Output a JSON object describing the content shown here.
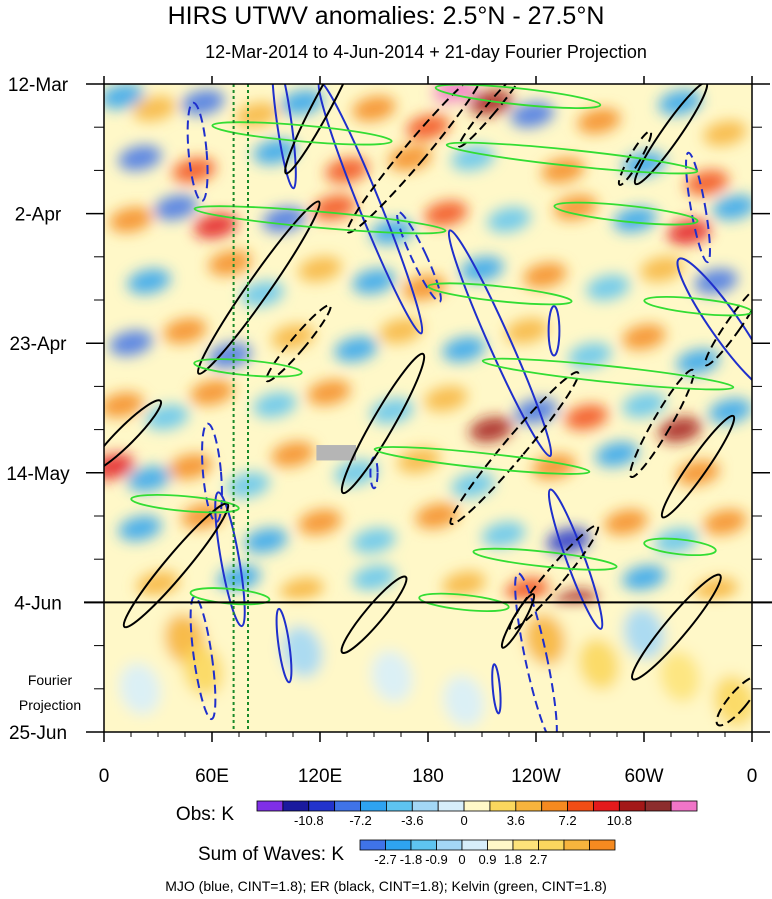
{
  "chart_data": {
    "type": "heatmap",
    "title": "HIRS UTWV anomalies: 2.5°N - 27.5°N",
    "subtitle": "12-Mar-2014 to 4-Jun-2014 + 21-day Fourier Projection",
    "x_ticks": [
      {
        "lon": 0,
        "label": "0"
      },
      {
        "lon": 60,
        "label": "60E"
      },
      {
        "lon": 120,
        "label": "120E"
      },
      {
        "lon": 180,
        "label": "180"
      },
      {
        "lon": 240,
        "label": "120W"
      },
      {
        "lon": 300,
        "label": "60W"
      },
      {
        "lon": 360,
        "label": "0"
      }
    ],
    "xlim": [
      0,
      360
    ],
    "y_ticks": [
      {
        "day": 0,
        "label": "12-Mar"
      },
      {
        "day": 21,
        "label": "2-Apr"
      },
      {
        "day": 42,
        "label": "23-Apr"
      },
      {
        "day": 63,
        "label": "14-May"
      },
      {
        "day": 84,
        "label": "4-Jun"
      },
      {
        "day": 105,
        "label": "25-Jun"
      }
    ],
    "ylim": [
      0,
      105
    ],
    "projection_start_day": 84,
    "projection_label": [
      "Fourier",
      "Projection"
    ],
    "reference_lons": [
      72,
      80
    ],
    "obs_colorbar": {
      "label": "Obs: K",
      "colors": [
        "#7f2fe6",
        "#1a1a9e",
        "#2233cc",
        "#3f73e8",
        "#2ea3f0",
        "#5ec4f0",
        "#a3d7f5",
        "#d7eefa",
        "#fff8c8",
        "#fbd75e",
        "#f7b43d",
        "#f58a20",
        "#f24d15",
        "#e31a1c",
        "#a31818",
        "#8c2d2d",
        "#f075c8"
      ],
      "tick_labels": [
        "-10.8",
        "-7.2",
        "-3.6",
        "0",
        "3.6",
        "7.2",
        "10.8"
      ]
    },
    "waves_colorbar": {
      "label": "Sum of Waves: K",
      "colors": [
        "#3f73e8",
        "#2ea3f0",
        "#5ec4f0",
        "#a3d7f5",
        "#d7eefa",
        "#fff8c8",
        "#fde37a",
        "#fbd75e",
        "#f7b43d",
        "#f58a20"
      ],
      "tick_labels": [
        "-2.7",
        "-1.8",
        "-0.9",
        "0",
        "0.9",
        "1.8",
        "2.7"
      ]
    },
    "footer": "MJO (blue, CINT=1.8); ER (black, CINT=1.8); Kelvin (green, CINT=1.8)",
    "wave_colors": {
      "mjo": "#1f2fcc",
      "er": "#000000",
      "kelvin": "#33dd33"
    },
    "anomaly_blobs": [
      {
        "lon": 10,
        "day": 2,
        "v": -5
      },
      {
        "lon": 28,
        "day": 4,
        "v": 4
      },
      {
        "lon": 55,
        "day": 3,
        "v": -6
      },
      {
        "lon": 85,
        "day": 5,
        "v": 4
      },
      {
        "lon": 110,
        "day": 3,
        "v": -5
      },
      {
        "lon": 150,
        "day": 4,
        "v": 5
      },
      {
        "lon": 195,
        "day": 1,
        "v": 13
      },
      {
        "lon": 215,
        "day": 3,
        "v": 9
      },
      {
        "lon": 180,
        "day": 7,
        "v": 6
      },
      {
        "lon": 238,
        "day": 5,
        "v": -6
      },
      {
        "lon": 275,
        "day": 6,
        "v": 5
      },
      {
        "lon": 320,
        "day": 3,
        "v": -5
      },
      {
        "lon": 345,
        "day": 8,
        "v": 4
      },
      {
        "lon": 20,
        "day": 12,
        "v": -6
      },
      {
        "lon": 50,
        "day": 14,
        "v": 6
      },
      {
        "lon": 95,
        "day": 11,
        "v": -5
      },
      {
        "lon": 135,
        "day": 14,
        "v": 6
      },
      {
        "lon": 170,
        "day": 12,
        "v": 5
      },
      {
        "lon": 205,
        "day": 12,
        "v": -4
      },
      {
        "lon": 255,
        "day": 14,
        "v": 5
      },
      {
        "lon": 300,
        "day": 13,
        "v": -5
      },
      {
        "lon": 335,
        "day": 16,
        "v": 6
      },
      {
        "lon": 15,
        "day": 22,
        "v": 5
      },
      {
        "lon": 40,
        "day": 20,
        "v": -6
      },
      {
        "lon": 62,
        "day": 23,
        "v": 7
      },
      {
        "lon": 100,
        "day": 22,
        "v": -6
      },
      {
        "lon": 128,
        "day": 20,
        "v": 6
      },
      {
        "lon": 160,
        "day": 24,
        "v": -5
      },
      {
        "lon": 190,
        "day": 21,
        "v": 6
      },
      {
        "lon": 225,
        "day": 22,
        "v": -4
      },
      {
        "lon": 262,
        "day": 20,
        "v": 5
      },
      {
        "lon": 295,
        "day": 22,
        "v": -5
      },
      {
        "lon": 325,
        "day": 24,
        "v": 7
      },
      {
        "lon": 350,
        "day": 20,
        "v": -5
      },
      {
        "lon": 25,
        "day": 32,
        "v": -5
      },
      {
        "lon": 70,
        "day": 29,
        "v": 5
      },
      {
        "lon": 88,
        "day": 34,
        "v": -4
      },
      {
        "lon": 120,
        "day": 30,
        "v": 4
      },
      {
        "lon": 150,
        "day": 32,
        "v": -5
      },
      {
        "lon": 178,
        "day": 33,
        "v": 5
      },
      {
        "lon": 210,
        "day": 30,
        "v": -5
      },
      {
        "lon": 245,
        "day": 31,
        "v": 5
      },
      {
        "lon": 280,
        "day": 33,
        "v": -4
      },
      {
        "lon": 310,
        "day": 30,
        "v": 4
      },
      {
        "lon": 340,
        "day": 32,
        "v": -6
      },
      {
        "lon": 15,
        "day": 42,
        "v": -6
      },
      {
        "lon": 45,
        "day": 40,
        "v": 5
      },
      {
        "lon": 70,
        "day": 44,
        "v": -6
      },
      {
        "lon": 105,
        "day": 41,
        "v": 4
      },
      {
        "lon": 140,
        "day": 43,
        "v": -5
      },
      {
        "lon": 165,
        "day": 40,
        "v": 4
      },
      {
        "lon": 200,
        "day": 43,
        "v": -5
      },
      {
        "lon": 235,
        "day": 40,
        "v": 4
      },
      {
        "lon": 270,
        "day": 44,
        "v": -4
      },
      {
        "lon": 300,
        "day": 41,
        "v": 5
      },
      {
        "lon": 330,
        "day": 45,
        "v": -5
      },
      {
        "lon": 10,
        "day": 52,
        "v": 5
      },
      {
        "lon": 35,
        "day": 54,
        "v": -4
      },
      {
        "lon": 60,
        "day": 50,
        "v": 5
      },
      {
        "lon": 95,
        "day": 52,
        "v": -4
      },
      {
        "lon": 125,
        "day": 50,
        "v": 5
      },
      {
        "lon": 160,
        "day": 53,
        "v": -4
      },
      {
        "lon": 190,
        "day": 51,
        "v": 4
      },
      {
        "lon": 215,
        "day": 56,
        "v": 8
      },
      {
        "lon": 240,
        "day": 53,
        "v": -6
      },
      {
        "lon": 268,
        "day": 54,
        "v": 6
      },
      {
        "lon": 300,
        "day": 52,
        "v": -4
      },
      {
        "lon": 320,
        "day": 56,
        "v": 8
      },
      {
        "lon": 348,
        "day": 53,
        "v": -5
      },
      {
        "lon": 5,
        "day": 62,
        "v": 7
      },
      {
        "lon": 25,
        "day": 64,
        "v": -5
      },
      {
        "lon": 48,
        "day": 62,
        "v": 5
      },
      {
        "lon": 80,
        "day": 65,
        "v": -4
      },
      {
        "lon": 105,
        "day": 60,
        "v": 5
      },
      {
        "lon": 140,
        "day": 63,
        "v": -4
      },
      {
        "lon": 175,
        "day": 61,
        "v": 4
      },
      {
        "lon": 205,
        "day": 65,
        "v": -4
      },
      {
        "lon": 250,
        "day": 62,
        "v": 5
      },
      {
        "lon": 285,
        "day": 60,
        "v": -5
      },
      {
        "lon": 330,
        "day": 63,
        "v": 5
      },
      {
        "lon": 20,
        "day": 72,
        "v": -5
      },
      {
        "lon": 55,
        "day": 70,
        "v": 5
      },
      {
        "lon": 90,
        "day": 74,
        "v": -5
      },
      {
        "lon": 120,
        "day": 71,
        "v": 5
      },
      {
        "lon": 150,
        "day": 74,
        "v": -4
      },
      {
        "lon": 185,
        "day": 70,
        "v": 5
      },
      {
        "lon": 222,
        "day": 73,
        "v": -4
      },
      {
        "lon": 258,
        "day": 74,
        "v": -7
      },
      {
        "lon": 290,
        "day": 71,
        "v": 5
      },
      {
        "lon": 318,
        "day": 74,
        "v": -4
      },
      {
        "lon": 345,
        "day": 71,
        "v": 5
      },
      {
        "lon": 30,
        "day": 81,
        "v": 4
      },
      {
        "lon": 75,
        "day": 80,
        "v": -5
      },
      {
        "lon": 110,
        "day": 82,
        "v": 4
      },
      {
        "lon": 150,
        "day": 80,
        "v": -4
      },
      {
        "lon": 200,
        "day": 81,
        "v": 4
      },
      {
        "lon": 235,
        "day": 82,
        "v": 6
      },
      {
        "lon": 262,
        "day": 84,
        "v": 8
      },
      {
        "lon": 300,
        "day": 80,
        "v": -5
      },
      {
        "lon": 340,
        "day": 82,
        "v": 4
      }
    ],
    "projection_blobs": [
      {
        "lon": 45,
        "day": 90,
        "v": 1.6
      },
      {
        "lon": 55,
        "day": 95,
        "v": 1.2
      },
      {
        "lon": 110,
        "day": 92,
        "v": -0.8
      },
      {
        "lon": 160,
        "day": 96,
        "v": -0.6
      },
      {
        "lon": 245,
        "day": 90,
        "v": 1.5
      },
      {
        "lon": 275,
        "day": 94,
        "v": 1.0
      },
      {
        "lon": 300,
        "day": 89,
        "v": -0.7
      },
      {
        "lon": 320,
        "day": 96,
        "v": 0.6
      },
      {
        "lon": 350,
        "day": 100,
        "v": 1.3
      },
      {
        "lon": 20,
        "day": 98,
        "v": -0.5
      },
      {
        "lon": 200,
        "day": 100,
        "v": -0.6
      }
    ],
    "wave_contours": [
      {
        "t": "mjo",
        "lon": 52,
        "day": 11,
        "rx": 5,
        "ry": 8,
        "rot": -5,
        "dash": true
      },
      {
        "t": "mjo",
        "lon": 100,
        "day": 6,
        "rx": 4,
        "ry": 11,
        "rot": -8,
        "dash": false
      },
      {
        "t": "mjo",
        "lon": 148,
        "day": 20,
        "rx": 6,
        "ry": 22,
        "rot": -22,
        "dash": false
      },
      {
        "t": "mjo",
        "lon": 175,
        "day": 28,
        "rx": 4,
        "ry": 8,
        "rot": -25,
        "dash": true
      },
      {
        "t": "mjo",
        "lon": 220,
        "day": 42,
        "rx": 6,
        "ry": 20,
        "rot": -24,
        "dash": false
      },
      {
        "t": "mjo",
        "lon": 250,
        "day": 40,
        "rx": 3,
        "ry": 4,
        "rot": 0,
        "dash": false
      },
      {
        "t": "mjo",
        "lon": 330,
        "day": 20,
        "rx": 4,
        "ry": 9,
        "rot": -10,
        "dash": true
      },
      {
        "t": "mjo",
        "lon": 345,
        "day": 39,
        "rx": 8,
        "ry": 13,
        "rot": -35,
        "dash": false
      },
      {
        "t": "mjo",
        "lon": 60,
        "day": 63,
        "rx": 5,
        "ry": 8,
        "rot": -5,
        "dash": true
      },
      {
        "t": "mjo",
        "lon": 70,
        "day": 77,
        "rx": 5,
        "ry": 11,
        "rot": -10,
        "dash": false
      },
      {
        "t": "mjo",
        "lon": 100,
        "day": 91,
        "rx": 3,
        "ry": 6,
        "rot": -8,
        "dash": false
      },
      {
        "t": "mjo",
        "lon": 150,
        "day": 63,
        "rx": 2,
        "ry": 2.5,
        "rot": 0,
        "dash": true
      },
      {
        "t": "mjo",
        "lon": 240,
        "day": 93,
        "rx": 6,
        "ry": 14,
        "rot": -12,
        "dash": true
      },
      {
        "t": "mjo",
        "lon": 218,
        "day": 98,
        "rx": 2,
        "ry": 4,
        "rot": -5,
        "dash": false
      },
      {
        "t": "mjo",
        "lon": 262,
        "day": 77,
        "rx": 5,
        "ry": 12,
        "rot": -20,
        "dash": false
      },
      {
        "t": "mjo",
        "lon": 55,
        "day": 93,
        "rx": 5,
        "ry": 10,
        "rot": -8,
        "dash": true
      },
      {
        "t": "er",
        "lon": 173,
        "day": 11,
        "rx": 6,
        "ry": 17,
        "rot": 40,
        "dash": true
      },
      {
        "t": "er",
        "lon": 215,
        "day": 4,
        "rx": 3,
        "ry": 8,
        "rot": 40,
        "dash": true
      },
      {
        "t": "er",
        "lon": 122,
        "day": 3,
        "rx": 5,
        "ry": 13,
        "rot": 28,
        "dash": false
      },
      {
        "t": "er",
        "lon": 86,
        "day": 33,
        "rx": 6,
        "ry": 17,
        "rot": 35,
        "dash": false
      },
      {
        "t": "er",
        "lon": 155,
        "day": 55,
        "rx": 6,
        "ry": 13,
        "rot": 30,
        "dash": false
      },
      {
        "t": "er",
        "lon": 228,
        "day": 59,
        "rx": 6,
        "ry": 16,
        "rot": 40,
        "dash": true
      },
      {
        "t": "er",
        "lon": 315,
        "day": 8,
        "rx": 5,
        "ry": 10,
        "rot": 35,
        "dash": false
      },
      {
        "t": "er",
        "lon": 350,
        "day": 39,
        "rx": 4,
        "ry": 8,
        "rot": 35,
        "dash": true
      },
      {
        "t": "er",
        "lon": 310,
        "day": 55,
        "rx": 5,
        "ry": 10,
        "rot": 30,
        "dash": true
      },
      {
        "t": "er",
        "lon": 330,
        "day": 62,
        "rx": 5,
        "ry": 10,
        "rot": 35,
        "dash": false
      },
      {
        "t": "er",
        "lon": 40,
        "day": 78,
        "rx": 6,
        "ry": 13,
        "rot": 40,
        "dash": false
      },
      {
        "t": "er",
        "lon": 150,
        "day": 86,
        "rx": 5,
        "ry": 8,
        "rot": 40,
        "dash": false
      },
      {
        "t": "er",
        "lon": 250,
        "day": 80,
        "rx": 5,
        "ry": 11,
        "rot": 40,
        "dash": true
      },
      {
        "t": "er",
        "lon": 230,
        "day": 87,
        "rx": 3,
        "ry": 5,
        "rot": 30,
        "dash": false
      },
      {
        "t": "er",
        "lon": 318,
        "day": 88,
        "rx": 6,
        "ry": 11,
        "rot": 40,
        "dash": false
      },
      {
        "t": "er",
        "lon": 352,
        "day": 100,
        "rx": 5,
        "ry": 5,
        "rot": 40,
        "dash": true
      },
      {
        "t": "er",
        "lon": 12,
        "day": 57,
        "rx": 5,
        "ry": 8,
        "rot": 45,
        "dash": false
      },
      {
        "t": "er",
        "lon": 108,
        "day": 42,
        "rx": 4,
        "ry": 8,
        "rot": 40,
        "dash": true
      },
      {
        "t": "er",
        "lon": 295,
        "day": 12,
        "rx": 3,
        "ry": 5,
        "rot": 30,
        "dash": true
      },
      {
        "t": "kelvin",
        "lon": 230,
        "day": 2,
        "rx": 46,
        "ry": 1.3,
        "rot": 6,
        "dash": false
      },
      {
        "t": "kelvin",
        "lon": 110,
        "day": 8,
        "rx": 50,
        "ry": 1.3,
        "rot": 5,
        "dash": false
      },
      {
        "t": "kelvin",
        "lon": 260,
        "day": 12,
        "rx": 70,
        "ry": 1.3,
        "rot": 6,
        "dash": false
      },
      {
        "t": "kelvin",
        "lon": 120,
        "day": 22,
        "rx": 70,
        "ry": 1.3,
        "rot": 5,
        "dash": false
      },
      {
        "t": "kelvin",
        "lon": 290,
        "day": 21,
        "rx": 40,
        "ry": 1.3,
        "rot": 6,
        "dash": false
      },
      {
        "t": "kelvin",
        "lon": 220,
        "day": 34,
        "rx": 40,
        "ry": 1.2,
        "rot": 6,
        "dash": false
      },
      {
        "t": "kelvin",
        "lon": 330,
        "day": 36,
        "rx": 30,
        "ry": 1.2,
        "rot": 6,
        "dash": false
      },
      {
        "t": "kelvin",
        "lon": 280,
        "day": 47,
        "rx": 70,
        "ry": 1.3,
        "rot": 6,
        "dash": false
      },
      {
        "t": "kelvin",
        "lon": 80,
        "day": 46,
        "rx": 30,
        "ry": 1.2,
        "rot": 5,
        "dash": false
      },
      {
        "t": "kelvin",
        "lon": 210,
        "day": 61,
        "rx": 60,
        "ry": 1.2,
        "rot": 6,
        "dash": false
      },
      {
        "t": "kelvin",
        "lon": 45,
        "day": 68,
        "rx": 30,
        "ry": 1.2,
        "rot": 5,
        "dash": false
      },
      {
        "t": "kelvin",
        "lon": 245,
        "day": 77,
        "rx": 40,
        "ry": 1.2,
        "rot": 6,
        "dash": false
      },
      {
        "t": "kelvin",
        "lon": 320,
        "day": 75,
        "rx": 20,
        "ry": 1.2,
        "rot": 6,
        "dash": false
      },
      {
        "t": "kelvin",
        "lon": 70,
        "day": 83,
        "rx": 22,
        "ry": 1.2,
        "rot": 5,
        "dash": false
      },
      {
        "t": "kelvin",
        "lon": 200,
        "day": 84,
        "rx": 25,
        "ry": 1.2,
        "rot": 6,
        "dash": false
      }
    ],
    "missing_patch": {
      "lon": [
        118,
        140
      ],
      "day": [
        58.5,
        61
      ]
    }
  }
}
